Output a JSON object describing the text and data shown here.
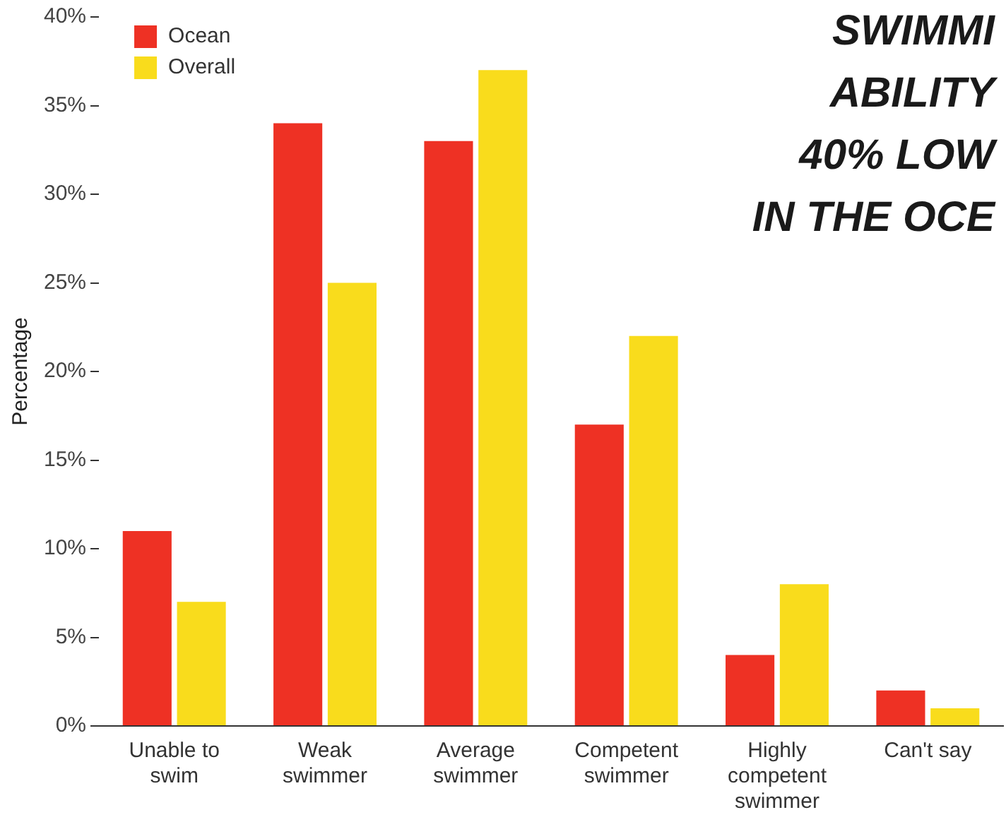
{
  "chart_data": {
    "type": "bar",
    "title": "SWIMMI\nABILITY\n40% LOW\nIN THE OCE",
    "ylabel": "Percentage",
    "categories": [
      "Unable to\nswim",
      "Weak\nswimmer",
      "Average\nswimmer",
      "Competent\nswimmer",
      "Highly\ncompetent\nswimmer",
      "Can't say"
    ],
    "series": [
      {
        "name": "Ocean",
        "color": "#ee3124",
        "values": [
          11,
          34,
          33,
          17,
          4,
          2
        ]
      },
      {
        "name": "Overall",
        "color": "#f9dc1c",
        "values": [
          7,
          25,
          37,
          22,
          8,
          1
        ]
      }
    ],
    "ylim": [
      0,
      40
    ],
    "yticks": [
      {
        "value": 0,
        "label": "0%"
      },
      {
        "value": 5,
        "label": "5%"
      },
      {
        "value": 10,
        "label": "10%"
      },
      {
        "value": 15,
        "label": "15%"
      },
      {
        "value": 20,
        "label": "20%"
      },
      {
        "value": 25,
        "label": "25%"
      },
      {
        "value": 30,
        "label": "30%"
      },
      {
        "value": 35,
        "label": "35%"
      },
      {
        "value": 40,
        "label": "40%"
      }
    ],
    "grid": false,
    "legend": "top left"
  }
}
